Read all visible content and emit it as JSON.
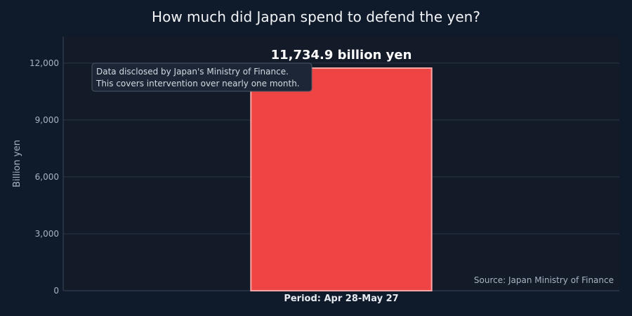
{
  "chart_data": {
    "type": "bar",
    "title": "How much did Japan spend to defend the yen?",
    "categories": [
      "Period: Apr 28-May 27"
    ],
    "values": [
      11734.9
    ],
    "value_label": "11,734.9 billion yen",
    "xlabel": "",
    "ylabel": "Billion yen",
    "ylim": [
      0,
      13400
    ],
    "yticks": [
      0,
      3000,
      6000,
      9000,
      12000
    ],
    "ytick_labels": [
      "0",
      "3,000",
      "6,000",
      "9,000",
      "12,000"
    ],
    "grid": true,
    "annotation": {
      "lines": [
        "Data disclosed by Japan's Ministry of Finance.",
        "This covers intervention over nearly one month."
      ]
    },
    "source": "Source: Japan Ministry of Finance"
  },
  "colors": {
    "background": "#0f1a2a",
    "plot_background": "#141b28",
    "bar_fill": "#ef4444",
    "bar_stroke": "#fca5a5",
    "grid": "#2a3648",
    "axis_text": "#a8b3c4",
    "title_text": "#f2f4f7",
    "annotation_bg": "#1c2636",
    "annotation_border": "#4a5668"
  }
}
